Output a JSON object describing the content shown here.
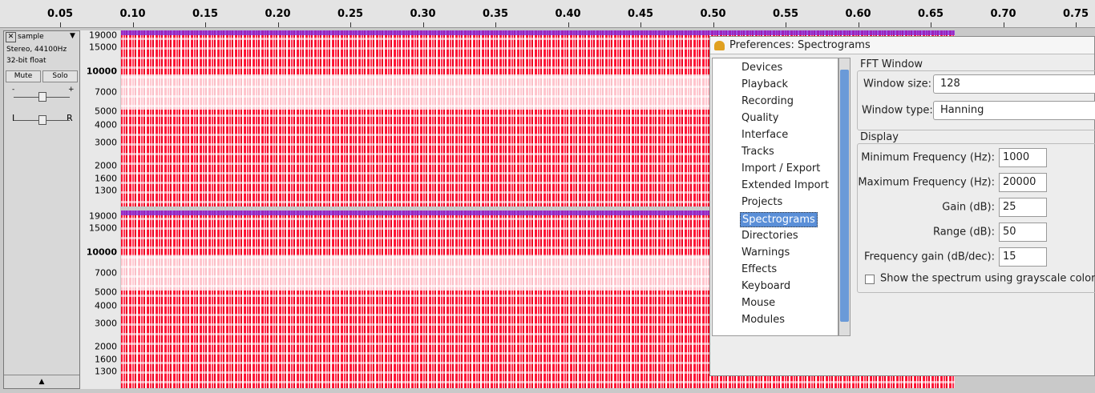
{
  "ruler": {
    "labels": [
      "0.05",
      "0.10",
      "0.15",
      "0.20",
      "0.25",
      "0.30",
      "0.35",
      "0.40",
      "0.45",
      "0.50",
      "0.55",
      "0.60",
      "0.65",
      "0.70",
      "0.75"
    ]
  },
  "track": {
    "name": "sample",
    "format": "Stereo, 44100Hz",
    "bit_depth": "32-bit float",
    "mute": "Mute",
    "solo": "Solo",
    "gain_minus": "-",
    "gain_plus": "+",
    "pan_left": "L",
    "pan_right": "R"
  },
  "frequency_scale": {
    "channels": [
      {
        "labels": [
          "19000",
          "15000",
          "10000",
          "7000",
          "5000",
          "4000",
          "3000",
          "2000",
          "1600",
          "1300"
        ]
      },
      {
        "labels": [
          "19000",
          "15000",
          "10000",
          "7000",
          "5000",
          "4000",
          "3000",
          "2000",
          "1600",
          "1300"
        ]
      }
    ]
  },
  "dialog": {
    "title": "Preferences: Spectrograms",
    "categories": [
      "Devices",
      "Playback",
      "Recording",
      "Quality",
      "Interface",
      "Tracks",
      "Import / Export",
      "Extended Import",
      "Projects",
      "Spectrograms",
      "Directories",
      "Warnings",
      "Effects",
      "Keyboard",
      "Mouse",
      "Modules"
    ],
    "selected_category": "Spectrograms",
    "fft_window": {
      "heading": "FFT Window",
      "window_size_label": "Window size:",
      "window_size": "128",
      "window_type_label": "Window type:",
      "window_type": "Hanning"
    },
    "display": {
      "heading": "Display",
      "fields": [
        {
          "label": "Minimum Frequency (Hz):",
          "value": "1000"
        },
        {
          "label": "Maximum Frequency (Hz):",
          "value": "20000"
        },
        {
          "label": "Gain (dB):",
          "value": "25"
        },
        {
          "label": "Range (dB):",
          "value": "50"
        },
        {
          "label": "Frequency gain (dB/dec):",
          "value": "15"
        }
      ],
      "grayscale_label": "Show the spectrum using grayscale colors"
    }
  }
}
